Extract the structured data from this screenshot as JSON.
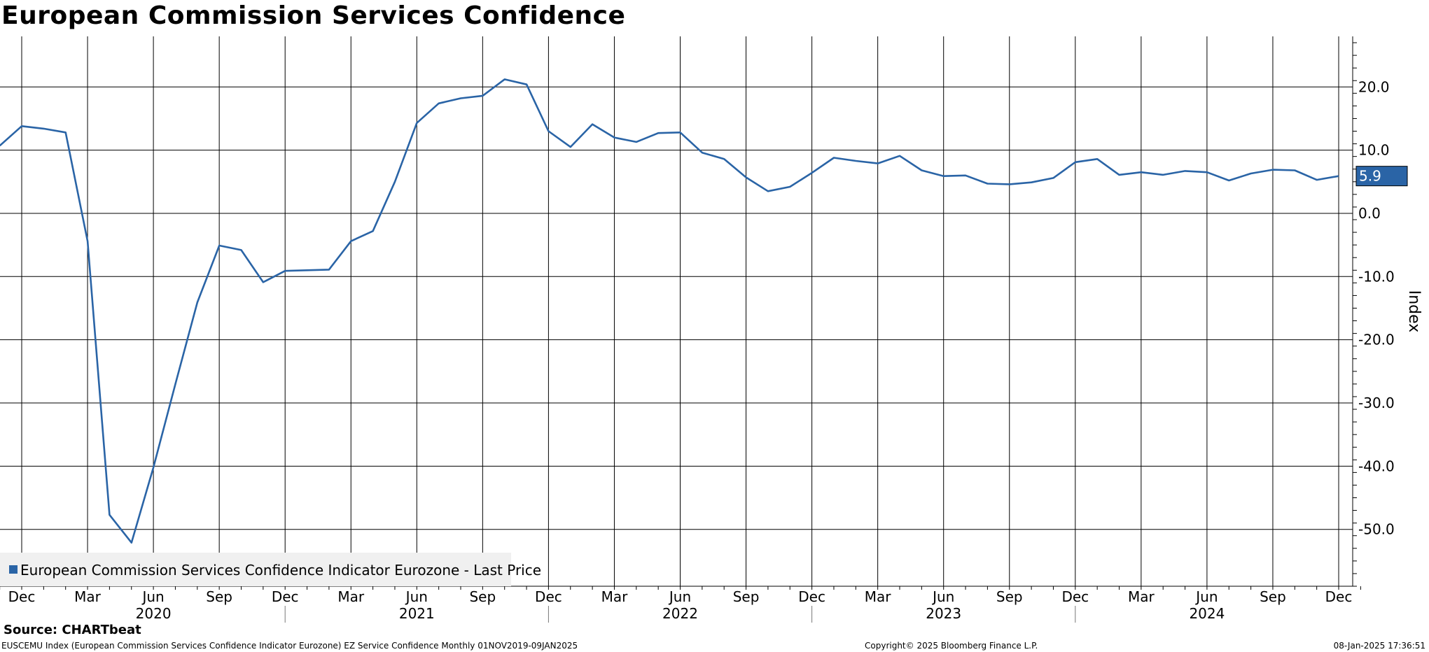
{
  "title": "European Commission Services Confidence",
  "source_label": "Source: CHARTbeat",
  "footer": {
    "left": "EUSCEMU Index (European Commission Services Confidence Indicator Eurozone) EZ Service Confidence  Monthly 01NOV2019-09JAN2025",
    "center": "Copyright© 2025 Bloomberg Finance L.P.",
    "right": "08-Jan-2025 17:36:51"
  },
  "colors": {
    "series": "#2a64a6",
    "last_price_box": "#2a64a6",
    "grid": "#000000",
    "legend_bg": "#f0f0f0"
  },
  "chart_data": {
    "type": "line",
    "title": "European Commission Services Confidence",
    "ylabel": "Index",
    "ylim": [
      -59,
      28
    ],
    "ytick_values": [
      20,
      10,
      0,
      -10,
      -20,
      -30,
      -40,
      -50
    ],
    "ytick_labels": [
      "20.0",
      "10.0",
      "0.0",
      "-10.0",
      "-20.0",
      "-30.0",
      "-40.0",
      "-50.0"
    ],
    "xlim": [
      "2019-11",
      "2025-01"
    ],
    "month_ticks": [
      {
        "date": "2019-12",
        "label": "Dec"
      },
      {
        "date": "2020-03",
        "label": "Mar"
      },
      {
        "date": "2020-06",
        "label": "Jun"
      },
      {
        "date": "2020-09",
        "label": "Sep"
      },
      {
        "date": "2020-12",
        "label": "Dec"
      },
      {
        "date": "2021-03",
        "label": "Mar"
      },
      {
        "date": "2021-06",
        "label": "Jun"
      },
      {
        "date": "2021-09",
        "label": "Sep"
      },
      {
        "date": "2021-12",
        "label": "Dec"
      },
      {
        "date": "2022-03",
        "label": "Mar"
      },
      {
        "date": "2022-06",
        "label": "Jun"
      },
      {
        "date": "2022-09",
        "label": "Sep"
      },
      {
        "date": "2022-12",
        "label": "Dec"
      },
      {
        "date": "2023-03",
        "label": "Mar"
      },
      {
        "date": "2023-06",
        "label": "Jun"
      },
      {
        "date": "2023-09",
        "label": "Sep"
      },
      {
        "date": "2023-12",
        "label": "Dec"
      },
      {
        "date": "2024-03",
        "label": "Mar"
      },
      {
        "date": "2024-06",
        "label": "Jun"
      },
      {
        "date": "2024-09",
        "label": "Sep"
      },
      {
        "date": "2024-12",
        "label": "Dec"
      }
    ],
    "year_labels": [
      {
        "date": "2020-06",
        "label": "2020"
      },
      {
        "date": "2021-06",
        "label": "2021"
      },
      {
        "date": "2022-06",
        "label": "2022"
      },
      {
        "date": "2023-06",
        "label": "2023"
      },
      {
        "date": "2024-06",
        "label": "2024"
      }
    ],
    "year_separators": [
      "2020-12",
      "2021-12",
      "2022-12",
      "2023-12"
    ],
    "grid": true,
    "legend_position": "bottom-left",
    "series": [
      {
        "name": "European Commission Services Confidence Indicator Eurozone - Last Price",
        "last_value_label": "5.9",
        "x": [
          "2019-11",
          "2019-12",
          "2020-01",
          "2020-02",
          "2020-03",
          "2020-04",
          "2020-05",
          "2020-06",
          "2020-07",
          "2020-08",
          "2020-09",
          "2020-10",
          "2020-11",
          "2020-12",
          "2021-01",
          "2021-02",
          "2021-03",
          "2021-04",
          "2021-05",
          "2021-06",
          "2021-07",
          "2021-08",
          "2021-09",
          "2021-10",
          "2021-11",
          "2021-12",
          "2022-01",
          "2022-02",
          "2022-03",
          "2022-04",
          "2022-05",
          "2022-06",
          "2022-07",
          "2022-08",
          "2022-09",
          "2022-10",
          "2022-11",
          "2022-12",
          "2023-01",
          "2023-02",
          "2023-03",
          "2023-04",
          "2023-05",
          "2023-06",
          "2023-07",
          "2023-08",
          "2023-09",
          "2023-10",
          "2023-11",
          "2023-12",
          "2024-01",
          "2024-02",
          "2024-03",
          "2024-04",
          "2024-05",
          "2024-06",
          "2024-07",
          "2024-08",
          "2024-09",
          "2024-10",
          "2024-11",
          "2024-12"
        ],
        "values": [
          10.7,
          13.8,
          13.4,
          12.8,
          -4.4,
          -47.7,
          -52.1,
          -40.2,
          -27.0,
          -14.1,
          -5.1,
          -5.8,
          -10.9,
          -9.1,
          -9.0,
          -8.9,
          -4.4,
          -2.8,
          5.0,
          14.3,
          17.4,
          18.2,
          18.6,
          21.2,
          20.4,
          13.0,
          10.5,
          14.1,
          12.0,
          11.3,
          12.7,
          12.8,
          9.6,
          8.6,
          5.7,
          3.5,
          4.2,
          6.4,
          8.8,
          8.3,
          7.9,
          9.1,
          6.8,
          5.9,
          6.0,
          4.7,
          4.6,
          4.9,
          5.6,
          8.1,
          8.6,
          6.1,
          6.5,
          6.1,
          6.7,
          6.5,
          5.2,
          6.3,
          6.9,
          6.8,
          5.3,
          5.9
        ]
      }
    ]
  }
}
